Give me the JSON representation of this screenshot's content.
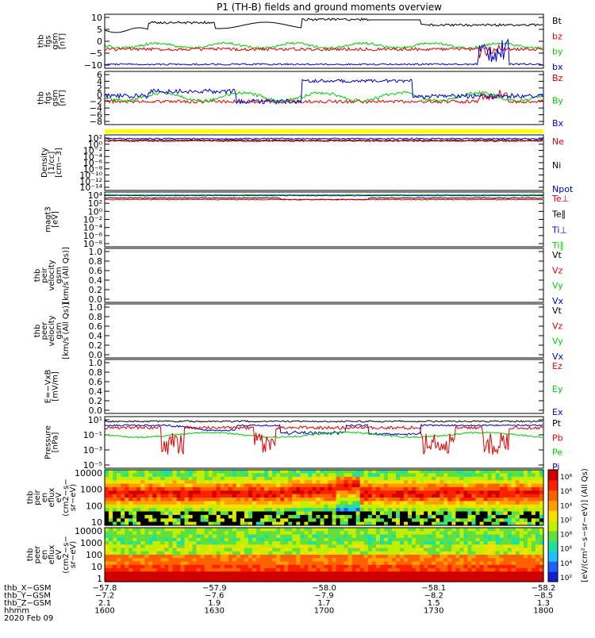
{
  "title": "P1 (TH-B) fields and ground moments overview",
  "colors": {
    "black": "#000000",
    "red": "#e00000",
    "green": "#00cc00",
    "blue": "#0000cc",
    "yellow": "#ffff00"
  },
  "panels": [
    {
      "id": "fgs",
      "ylabel": [
        "thb",
        "fgs",
        "gsm",
        "[nT]"
      ],
      "ticks": [
        "10",
        "5",
        "0",
        "−5",
        "−10"
      ],
      "legend": [
        {
          "t": "Bt",
          "c": "black"
        },
        {
          "t": "bz",
          "c": "red"
        },
        {
          "t": "by",
          "c": "green"
        },
        {
          "t": "bx",
          "c": "blue"
        }
      ]
    },
    {
      "id": "fgs2",
      "ylabel": [
        "thb",
        "fgs",
        "gsm",
        "[nT]"
      ],
      "ticks": [
        "6",
        "4",
        "2",
        "0",
        "−2",
        "−4",
        "−6",
        "−8"
      ],
      "legend": [
        {
          "t": "Bz",
          "c": "red"
        },
        {
          "t": "By",
          "c": "green"
        },
        {
          "t": "Bx",
          "c": "blue"
        }
      ]
    },
    {
      "id": "density",
      "ylabel": [
        "Density",
        "[1/cc]",
        "[cm−3]"
      ],
      "ticks": [
        "10²",
        "10⁰",
        "10⁻²",
        "10⁻⁴",
        "10⁻⁶",
        "10⁻⁸",
        "10⁻¹⁰",
        "10⁻¹²",
        "10⁻¹⁴"
      ],
      "legend": [
        {
          "t": "Ne",
          "c": "red"
        },
        {
          "t": "Ni",
          "c": "black"
        },
        {
          "t": "Npot",
          "c": "blue"
        }
      ]
    },
    {
      "id": "temp",
      "ylabel": [
        "magt3",
        "[eV]"
      ],
      "ticks": [
        "10⁴",
        "10²",
        "10⁰",
        "10⁻²",
        "10⁻⁴",
        "10⁻⁶",
        "10⁻⁸"
      ],
      "legend": [
        {
          "t": "Te⊥",
          "c": "red"
        },
        {
          "t": "Te∥",
          "c": "black"
        },
        {
          "t": "Ti⊥",
          "c": "blue"
        },
        {
          "t": "Ti∥",
          "c": "green"
        }
      ]
    },
    {
      "id": "peirv",
      "ylabel": [
        "thb",
        "peir",
        "velocity",
        "gsm",
        "[km/s (All Qs)]"
      ],
      "ticks": [
        "1.0",
        "0.8",
        "0.6",
        "0.4",
        "0.2",
        "0.0"
      ],
      "legend": [
        {
          "t": "Vt",
          "c": "black"
        },
        {
          "t": "Vz",
          "c": "red"
        },
        {
          "t": "Vy",
          "c": "green"
        },
        {
          "t": "Vx",
          "c": "blue"
        }
      ]
    },
    {
      "id": "peerv",
      "ylabel": [
        "thb",
        "peer",
        "velocity",
        "gsm",
        "[km/s (All Qs)]"
      ],
      "ticks": [
        "1.0",
        "0.8",
        "0.6",
        "0.4",
        "0.2",
        "0.0"
      ],
      "legend": [
        {
          "t": "Vt",
          "c": "black"
        },
        {
          "t": "Vz",
          "c": "red"
        },
        {
          "t": "Vy",
          "c": "green"
        },
        {
          "t": "Vx",
          "c": "blue"
        }
      ]
    },
    {
      "id": "efield",
      "ylabel": [
        "E=−VxB",
        "[mV/m]"
      ],
      "ticks": [
        "1.0",
        "0.8",
        "0.6",
        "0.4",
        "0.2",
        "0.0"
      ],
      "legend": [
        {
          "t": "Ez",
          "c": "red"
        },
        {
          "t": "Ey",
          "c": "green"
        },
        {
          "t": "Ex",
          "c": "blue"
        }
      ]
    },
    {
      "id": "pressure",
      "ylabel": [
        "Pressure",
        "[nPa]"
      ],
      "ticks": [
        "10¹",
        "10⁻¹",
        "10⁻³",
        "10⁻⁵"
      ],
      "legend": [
        {
          "t": "Pt",
          "c": "black"
        },
        {
          "t": "Pb",
          "c": "red"
        },
        {
          "t": "Pe",
          "c": "green"
        },
        {
          "t": "Pi",
          "c": "blue"
        }
      ]
    },
    {
      "id": "peirspec",
      "ylabel": [
        "thb",
        "peir",
        "en",
        "eflux",
        "eV",
        "(cm2−s−",
        "sr−eV)"
      ],
      "ticks": [
        "10000",
        "1000",
        "100",
        "10"
      ],
      "legend": []
    },
    {
      "id": "peerspec",
      "ylabel": [
        "thb",
        "peer",
        "en",
        "eflux",
        "eV",
        "(cm2−s−",
        "sr−eV)"
      ],
      "ticks": [
        "10000",
        "1000",
        "100",
        "10",
        "1"
      ],
      "legend": []
    }
  ],
  "colorbar": {
    "ticks": [
      "10⁸",
      "10⁶",
      "10⁴",
      "10²",
      "10⁸",
      "10⁶",
      "10⁴",
      "10²"
    ],
    "label": "[eV/(cm²−s−sr−eV)]  (All Qs)"
  },
  "xaxis": {
    "rows": [
      {
        "label": "thb_X−GSM",
        "vals": [
          "−57.8",
          "−57.9",
          "−58.0",
          "−58.1",
          "−58.2"
        ]
      },
      {
        "label": "thb_Y−GSM",
        "vals": [
          "−7.2",
          "−7.6",
          "−7.9",
          "−8.2",
          "−8.5"
        ]
      },
      {
        "label": "thb_Z−GSM",
        "vals": [
          "2.1",
          "1.9",
          "1.7",
          "1.5",
          "1.3"
        ]
      },
      {
        "label": "hhmm",
        "vals": [
          "1600",
          "1630",
          "1700",
          "1730",
          "1800"
        ]
      }
    ],
    "date": "2020 Feb 09"
  },
  "chart_data": [
    {
      "type": "line",
      "title": "P1 (TH-B) fields and ground moments overview",
      "ylabel": "thb fgs gsm [nT]",
      "x_start": "1600",
      "x_end": "1800",
      "series": [
        {
          "name": "Bt",
          "values": [
            7,
            8,
            9,
            9,
            10,
            9,
            8,
            9,
            10,
            9,
            8,
            8
          ]
        },
        {
          "name": "bz",
          "values": [
            -1,
            0,
            0,
            -1,
            0,
            0,
            1,
            0,
            -1,
            0,
            -1,
            0
          ]
        },
        {
          "name": "by",
          "values": [
            0,
            1,
            2,
            0,
            1,
            2,
            2,
            2,
            3,
            2,
            1,
            1
          ]
        },
        {
          "name": "bx",
          "values": [
            -2,
            -3,
            -6,
            -8,
            -9,
            -8,
            -7,
            -9,
            -10,
            -9,
            -6,
            -5
          ]
        }
      ],
      "ylim": [
        -12,
        12
      ]
    },
    {
      "type": "line",
      "ylabel": "thb fgs gsm [nT]",
      "series": [
        {
          "name": "Bz",
          "values": [
            -1,
            -1,
            -1,
            -1,
            -1,
            -1,
            -1,
            -1,
            -2,
            -1,
            -1,
            -1
          ]
        },
        {
          "name": "By",
          "values": [
            -1,
            2,
            1,
            1,
            -1,
            1,
            1,
            0,
            0,
            0,
            1,
            1
          ]
        },
        {
          "name": "Bx",
          "values": [
            -2,
            2,
            2,
            4,
            2,
            -4,
            4,
            4,
            5,
            3,
            2,
            2
          ]
        }
      ],
      "ylim": [
        -8,
        6
      ]
    },
    {
      "type": "line",
      "ylabel": "Density [1/cc] [cm−3]",
      "log": true,
      "series": [
        {
          "name": "Ne",
          "values": [
            0.1,
            0.1,
            0.1,
            0.1,
            0.1,
            0.1
          ]
        },
        {
          "name": "Ni",
          "values": [
            0.1,
            0.1,
            0.1,
            0.1,
            0.1,
            0.1
          ]
        },
        {
          "name": "Npot",
          "values": [
            0.2,
            0.2,
            0.2,
            0.2,
            0.2,
            0.2
          ]
        }
      ]
    },
    {
      "type": "line",
      "ylabel": "magt3 [eV]",
      "log": true,
      "series": [
        {
          "name": "Te⊥",
          "values": [
            500,
            500,
            500,
            500,
            500,
            500
          ]
        },
        {
          "name": "Te∥",
          "values": [
            1000,
            1000,
            1000,
            1000,
            1000,
            1000
          ]
        },
        {
          "name": "Ti⊥",
          "values": [
            3000,
            3000,
            3000,
            3000,
            3000,
            3000
          ]
        },
        {
          "name": "Ti∥",
          "values": [
            3000,
            3000,
            3000,
            3000,
            3000,
            3000
          ]
        }
      ]
    },
    {
      "type": "line",
      "ylabel": "Pressure [nPa]",
      "log": true,
      "series": [
        {
          "name": "Pt",
          "values": [
            0.05,
            0.06,
            0.08,
            0.1,
            0.08,
            0.05
          ]
        },
        {
          "name": "Pb",
          "values": [
            0.03,
            0.0005,
            0.005,
            0.005,
            0.0005,
            0.003
          ]
        },
        {
          "name": "Pe",
          "values": [
            0.001,
            0.001,
            0.0003,
            0.0005,
            0.001,
            0.001
          ]
        },
        {
          "name": "Pi",
          "values": [
            0.03,
            0.03,
            0.01,
            0.005,
            0.01,
            0.03
          ]
        }
      ]
    },
    {
      "type": "heatmap",
      "ylabel": "thb peir en eflux",
      "y_ticks": [
        "10000",
        "1000",
        "100",
        "10"
      ]
    },
    {
      "type": "heatmap",
      "ylabel": "thb peer en eflux",
      "y_ticks": [
        "10000",
        "1000",
        "100",
        "10",
        "1"
      ]
    }
  ]
}
